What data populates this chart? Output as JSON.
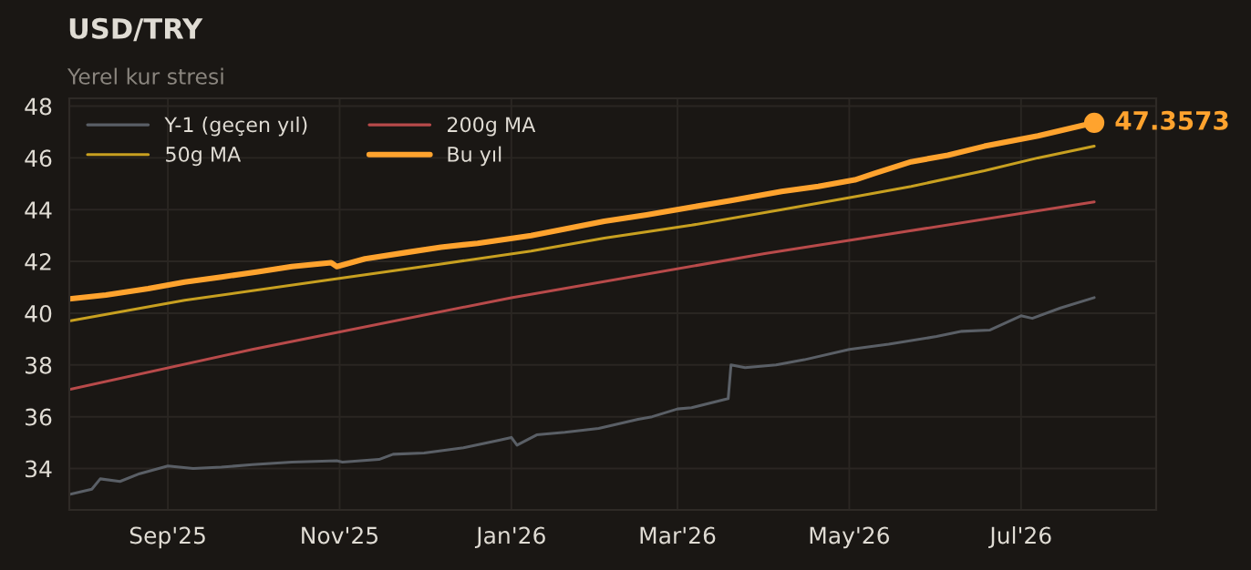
{
  "chart_data": {
    "type": "line",
    "title": "USD/TRY",
    "subtitle": "Yerel kur stresi",
    "xlim": [
      "2025-07-28",
      "2026-08-18"
    ],
    "xticks": [
      {
        "value": "2025-09-01",
        "label": "Sep'25"
      },
      {
        "value": "2025-11-01",
        "label": "Nov'25"
      },
      {
        "value": "2026-01-01",
        "label": "Jan'26"
      },
      {
        "value": "2026-03-01",
        "label": "Mar'26"
      },
      {
        "value": "2026-05-01",
        "label": "May'26"
      },
      {
        "value": "2026-07-01",
        "label": "Jul'26"
      }
    ],
    "ylim": [
      32.4,
      48.3
    ],
    "yticks": [
      34,
      36,
      38,
      40,
      42,
      44,
      46,
      48
    ],
    "grid": true,
    "legend": "top left",
    "series": [
      {
        "name": "Y-1 (geçen yıl)",
        "color": "#5a5f66",
        "x": [
          "2025-07-28",
          "2025-08-05",
          "2025-08-08",
          "2025-08-15",
          "2025-08-22",
          "2025-09-01",
          "2025-09-10",
          "2025-09-20",
          "2025-10-01",
          "2025-10-15",
          "2025-10-31",
          "2025-11-02",
          "2025-11-15",
          "2025-11-20",
          "2025-12-01",
          "2025-12-15",
          "2025-12-28",
          "2026-01-01",
          "2026-01-03",
          "2026-01-10",
          "2026-01-20",
          "2026-02-01",
          "2026-02-15",
          "2026-02-20",
          "2026-03-01",
          "2026-03-06",
          "2026-03-19",
          "2026-03-20",
          "2026-03-25",
          "2026-04-05",
          "2026-04-15",
          "2026-05-01",
          "2026-05-15",
          "2026-06-01",
          "2026-06-10",
          "2026-06-20",
          "2026-07-01",
          "2026-07-05",
          "2026-07-15",
          "2026-07-27"
        ],
        "values": [
          33.0,
          33.2,
          33.6,
          33.5,
          33.8,
          34.1,
          34.0,
          34.05,
          34.15,
          34.25,
          34.3,
          34.25,
          34.35,
          34.55,
          34.6,
          34.8,
          35.1,
          35.2,
          34.9,
          35.3,
          35.4,
          35.55,
          35.9,
          36.0,
          36.3,
          36.35,
          36.7,
          38.0,
          37.9,
          38.0,
          38.2,
          38.6,
          38.8,
          39.1,
          39.3,
          39.35,
          39.9,
          39.8,
          40.2,
          40.6
        ]
      },
      {
        "name": "50g MA",
        "color": "#c8a020",
        "x": [
          "2025-07-28",
          "2025-09-07",
          "2025-10-29",
          "2025-12-07",
          "2026-01-08",
          "2026-02-03",
          "2026-03-06",
          "2026-04-07",
          "2026-05-03",
          "2026-05-23",
          "2026-06-18",
          "2026-07-07",
          "2026-07-27"
        ],
        "values": [
          39.7,
          40.5,
          41.3,
          41.9,
          42.4,
          42.9,
          43.4,
          44.0,
          44.5,
          44.9,
          45.5,
          46.0,
          46.45
        ]
      },
      {
        "name": "200g MA",
        "color": "#b84a4a",
        "x": [
          "2025-07-28",
          "2025-10-01",
          "2026-01-01",
          "2026-04-01",
          "2026-07-27"
        ],
        "values": [
          37.05,
          38.6,
          40.6,
          42.3,
          44.3
        ]
      },
      {
        "name": "Bu yıl",
        "color": "#ffa32e",
        "x": [
          "2025-07-28",
          "2025-08-10",
          "2025-08-25",
          "2025-09-07",
          "2025-09-20",
          "2025-10-03",
          "2025-10-15",
          "2025-10-29",
          "2025-10-31",
          "2025-11-10",
          "2025-11-25",
          "2025-12-07",
          "2025-12-20",
          "2026-01-08",
          "2026-01-20",
          "2026-02-03",
          "2026-02-18",
          "2026-03-06",
          "2026-03-20",
          "2026-04-07",
          "2026-04-20",
          "2026-05-03",
          "2026-05-10",
          "2026-05-23",
          "2026-06-05",
          "2026-06-18",
          "2026-07-07",
          "2026-07-27"
        ],
        "values": [
          40.55,
          40.7,
          40.95,
          41.2,
          41.4,
          41.6,
          41.8,
          41.95,
          41.8,
          42.1,
          42.35,
          42.55,
          42.7,
          43.0,
          43.25,
          43.55,
          43.8,
          44.1,
          44.35,
          44.7,
          44.9,
          45.15,
          45.4,
          45.85,
          46.1,
          46.45,
          46.85,
          47.3573
        ]
      }
    ],
    "annotations": [
      {
        "text": "47.3573",
        "x": "2026-07-27",
        "y": 47.3573
      }
    ]
  }
}
